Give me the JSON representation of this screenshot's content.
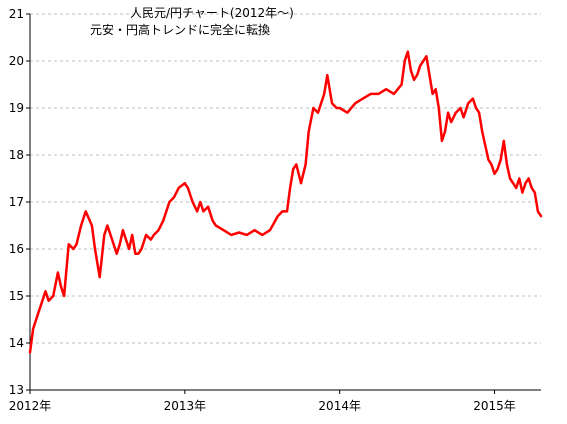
{
  "chart_data": {
    "type": "line",
    "title": "人民元/円チャート(2012年～)",
    "subtitle": "元安・円高トレンドに完全に転換",
    "xlabel": "",
    "ylabel": "",
    "xlim": [
      2012.0,
      2015.3
    ],
    "ylim": [
      13,
      21
    ],
    "yticks": [
      13,
      14,
      15,
      16,
      17,
      18,
      19,
      20,
      21
    ],
    "xtick_labels": [
      "2012年",
      "2013年",
      "2014年",
      "2015年"
    ],
    "xtick_values": [
      2012,
      2013,
      2014,
      2015
    ],
    "grid": "horizontal dashed",
    "line_color": "#ff0000",
    "series": [
      {
        "x": [
          2012.0,
          2012.02,
          2012.05,
          2012.08,
          2012.1,
          2012.12,
          2012.15,
          2012.18,
          2012.2,
          2012.22,
          2012.25,
          2012.28,
          2012.3,
          2012.33,
          2012.36,
          2012.4,
          2012.42,
          2012.45,
          2012.48,
          2012.5,
          2012.53,
          2012.56,
          2012.58,
          2012.6,
          2012.62,
          2012.64,
          2012.66,
          2012.68,
          2012.7,
          2012.72,
          2012.75,
          2012.78,
          2012.8,
          2012.83,
          2012.86,
          2012.9,
          2012.93,
          2012.96,
          2013.0,
          2013.02,
          2013.05,
          2013.08,
          2013.1,
          2013.12,
          2013.15,
          2013.18,
          2013.2,
          2013.25,
          2013.3,
          2013.35,
          2013.4,
          2013.45,
          2013.5,
          2013.55,
          2013.6,
          2013.63,
          2013.66,
          2013.68,
          2013.7,
          2013.72,
          2013.75,
          2013.78,
          2013.8,
          2013.83,
          2013.86,
          2013.9,
          2013.92,
          2013.95,
          2013.98,
          2014.0,
          2014.05,
          2014.1,
          2014.15,
          2014.2,
          2014.25,
          2014.3,
          2014.35,
          2014.4,
          2014.42,
          2014.44,
          2014.46,
          2014.48,
          2014.5,
          2014.52,
          2014.54,
          2014.56,
          2014.58,
          2014.6,
          2014.62,
          2014.64,
          2014.66,
          2014.68,
          2014.7,
          2014.72,
          2014.75,
          2014.78,
          2014.8,
          2014.83,
          2014.86,
          2014.88,
          2014.9,
          2014.92,
          2014.94,
          2014.96,
          2014.98,
          2015.0,
          2015.02,
          2015.04,
          2015.06,
          2015.08,
          2015.1,
          2015.12,
          2015.14,
          2015.16,
          2015.18,
          2015.2,
          2015.22,
          2015.24,
          2015.26,
          2015.28,
          2015.3
        ],
        "values": [
          13.8,
          14.3,
          14.6,
          14.9,
          15.1,
          14.9,
          15.0,
          15.5,
          15.2,
          15.0,
          16.1,
          16.0,
          16.1,
          16.5,
          16.8,
          16.5,
          16.0,
          15.4,
          16.3,
          16.5,
          16.2,
          15.9,
          16.1,
          16.4,
          16.2,
          16.0,
          16.3,
          15.9,
          15.9,
          16.0,
          16.3,
          16.2,
          16.3,
          16.4,
          16.6,
          17.0,
          17.1,
          17.3,
          17.4,
          17.3,
          17.0,
          16.8,
          17.0,
          16.8,
          16.9,
          16.6,
          16.5,
          16.4,
          16.3,
          16.35,
          16.3,
          16.4,
          16.3,
          16.4,
          16.7,
          16.8,
          16.8,
          17.3,
          17.7,
          17.8,
          17.4,
          17.8,
          18.5,
          19.0,
          18.9,
          19.3,
          19.7,
          19.1,
          19.0,
          19.0,
          18.9,
          19.1,
          19.2,
          19.3,
          19.3,
          19.4,
          19.3,
          19.5,
          20.0,
          20.2,
          19.8,
          19.6,
          19.7,
          19.9,
          20.0,
          20.1,
          19.7,
          19.3,
          19.4,
          19.0,
          18.3,
          18.5,
          18.9,
          18.7,
          18.9,
          19.0,
          18.8,
          19.1,
          19.2,
          19.0,
          18.9,
          18.5,
          18.2,
          17.9,
          17.8,
          17.6,
          17.7,
          17.9,
          18.3,
          17.8,
          17.5,
          17.4,
          17.3,
          17.5,
          17.2,
          17.4,
          17.5,
          17.3,
          17.2,
          16.8,
          16.7
        ]
      }
    ]
  }
}
